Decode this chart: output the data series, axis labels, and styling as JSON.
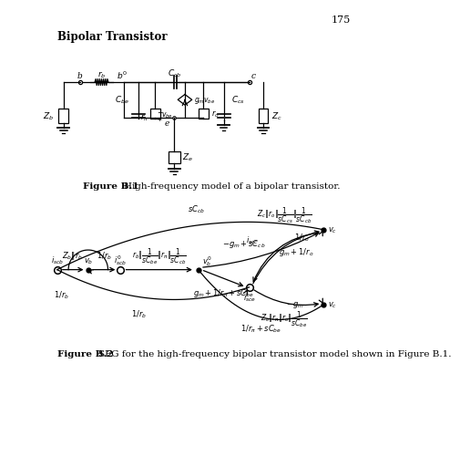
{
  "page_number": "175",
  "title": "Bipolar Transistor",
  "fig1_caption_bold": "Figure B.1",
  "fig1_caption_text": "High-frequency model of a bipolar transistor.",
  "fig2_caption_bold": "Figure B.2",
  "fig2_caption_text": "SFG for the high-frequency bipolar transistor model shown in Figure B.1.",
  "bg_color": "#ffffff",
  "line_color": "#000000",
  "font_size_title": 8.5,
  "font_size_caption": 7.5,
  "font_size_label": 6.5,
  "font_size_page": 8,
  "font_size_sfg": 6.0
}
